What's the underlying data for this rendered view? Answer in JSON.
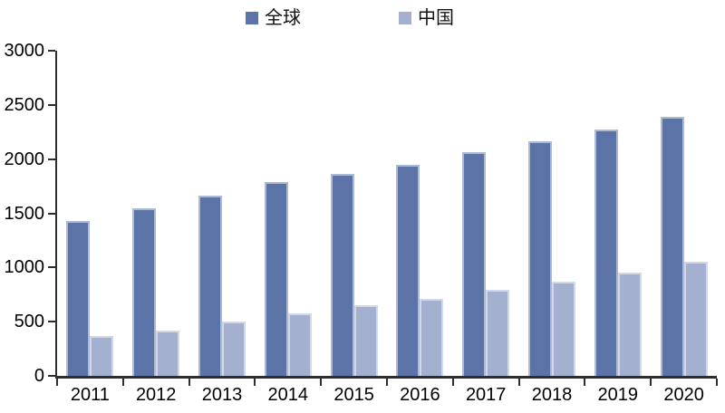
{
  "chart_data": {
    "type": "bar",
    "title": "",
    "xlabel": "",
    "ylabel": "",
    "categories": [
      "2011",
      "2012",
      "2013",
      "2014",
      "2015",
      "2016",
      "2017",
      "2018",
      "2019",
      "2020"
    ],
    "series": [
      {
        "name": "全球",
        "slug": "global",
        "color": "#5C73A8",
        "values": [
          1430,
          1545,
          1660,
          1785,
          1860,
          1950,
          2060,
          2165,
          2275,
          2390
        ]
      },
      {
        "name": "中国",
        "slug": "china",
        "color": "#A3B0CF",
        "values": [
          365,
          420,
          505,
          580,
          655,
          710,
          795,
          870,
          950,
          1050
        ]
      }
    ],
    "ylim": [
      0,
      3000
    ],
    "ytick_step": 500,
    "ytick_labels": [
      "0",
      "500",
      "1000",
      "1500",
      "2000",
      "2500",
      "3000"
    ],
    "grid": false,
    "legend_position": "top-center",
    "axis_color": "#2e2e2e",
    "text_color": "#000000",
    "background_color": "#ffffff"
  }
}
